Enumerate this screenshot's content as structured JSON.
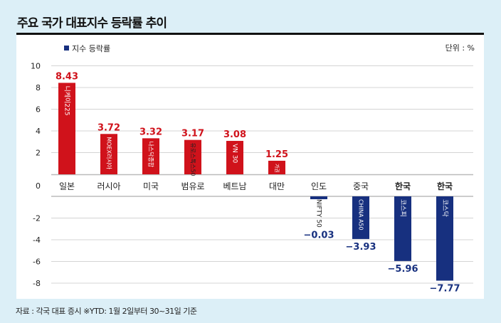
{
  "title": "주요 국가 대표지수 등락률 추이",
  "unit": "단위 : %",
  "source": "자료 : 각국 대표 증시 ※YTD: 1월 2일부터 30~31일 기준",
  "colors": {
    "positive": "#d0121b",
    "negative": "#17307f",
    "background": "#dcEFF7"
  },
  "chart_data": {
    "type": "bar",
    "legend": [
      {
        "name": "지수 등락률",
        "color": "#17307f"
      }
    ],
    "legend_position": "top-left",
    "categories": [
      "일본",
      "러시아",
      "미국",
      "범유로",
      "베트남",
      "대만",
      "인도",
      "중국",
      "한국",
      "한국"
    ],
    "bold_categories": [
      8,
      9
    ],
    "index_names": [
      "니케이225",
      "MOEX러시아",
      "나스닥종합",
      "유로스톡스50",
      "VN 30",
      "가권",
      "NIFTY 50",
      "CHINA A50",
      "코스피",
      "코스닥"
    ],
    "values": [
      8.43,
      3.72,
      3.32,
      3.17,
      3.08,
      1.25,
      -0.03,
      -3.93,
      -5.96,
      -7.77
    ],
    "value_labels": [
      "8.43",
      "3.72",
      "3.32",
      "3.17",
      "3.08",
      "1.25",
      "-0.03",
      "-3.93",
      "-5.96",
      "-7.77"
    ],
    "yticks": [
      "10",
      "8",
      "6",
      "4",
      "2",
      "0",
      "-2",
      "-4",
      "-6",
      "-8"
    ],
    "ylim": [
      -8,
      10
    ],
    "grid": true
  }
}
